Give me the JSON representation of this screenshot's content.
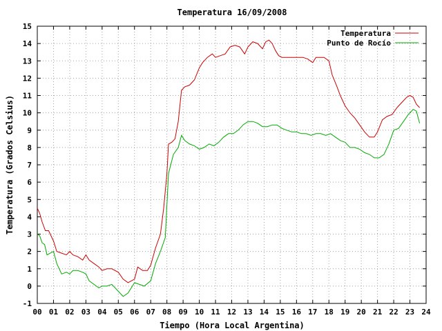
{
  "chart_data": {
    "type": "line",
    "title": "Temperatura 16/09/2008",
    "xlabel": "Tiempo (Hora Local Argentina)",
    "ylabel": "Temperatura (Grados Celsius)",
    "xlim": [
      0,
      24
    ],
    "ylim": [
      -1,
      15
    ],
    "x_ticks": [
      "00",
      "01",
      "02",
      "03",
      "04",
      "05",
      "06",
      "07",
      "08",
      "09",
      "10",
      "11",
      "12",
      "13",
      "14",
      "15",
      "16",
      "17",
      "18",
      "19",
      "20",
      "21",
      "22",
      "23",
      "24"
    ],
    "y_ticks": [
      -1,
      0,
      1,
      2,
      3,
      4,
      5,
      6,
      7,
      8,
      9,
      10,
      11,
      12,
      13,
      14,
      15
    ],
    "grid": true,
    "legend_position": "top-right",
    "series": [
      {
        "name": "Temperatura",
        "color": "#cc0000",
        "x": [
          0,
          0.15,
          0.3,
          0.5,
          0.7,
          1.0,
          1.2,
          1.5,
          1.8,
          2.0,
          2.2,
          2.5,
          2.8,
          3.0,
          3.2,
          3.5,
          3.8,
          4.0,
          4.3,
          4.6,
          5.0,
          5.3,
          5.6,
          6.0,
          6.2,
          6.5,
          6.8,
          7.0,
          7.3,
          7.6,
          7.8,
          8.0,
          8.1,
          8.3,
          8.5,
          8.7,
          8.9,
          9.1,
          9.4,
          9.7,
          10.0,
          10.2,
          10.5,
          10.8,
          11.0,
          11.3,
          11.6,
          11.9,
          12.2,
          12.5,
          12.8,
          13.0,
          13.3,
          13.6,
          13.9,
          14.1,
          14.3,
          14.5,
          14.7,
          14.9,
          15.1,
          15.3,
          15.5,
          15.8,
          16.1,
          16.4,
          16.7,
          17.0,
          17.2,
          17.4,
          17.7,
          18.0,
          18.2,
          18.5,
          18.7,
          19.0,
          19.3,
          19.6,
          19.9,
          20.2,
          20.5,
          20.8,
          21.0,
          21.3,
          21.6,
          21.9,
          22.2,
          22.5,
          22.8,
          23.0,
          23.2,
          23.4,
          23.6
        ],
        "values": [
          4.5,
          4.2,
          3.7,
          3.2,
          3.2,
          2.6,
          2.0,
          1.9,
          1.8,
          2.0,
          1.8,
          1.7,
          1.5,
          1.8,
          1.5,
          1.3,
          1.1,
          0.9,
          1.0,
          1.0,
          0.8,
          0.4,
          0.2,
          0.4,
          1.1,
          0.9,
          0.9,
          1.2,
          2.2,
          3.0,
          4.5,
          6.5,
          8.2,
          8.3,
          8.5,
          9.5,
          11.3,
          11.5,
          11.6,
          11.9,
          12.6,
          12.9,
          13.2,
          13.4,
          13.2,
          13.3,
          13.4,
          13.8,
          13.9,
          13.8,
          13.4,
          13.8,
          14.1,
          14.0,
          13.7,
          14.1,
          14.2,
          14.0,
          13.6,
          13.3,
          13.2,
          13.2,
          13.2,
          13.2,
          13.2,
          13.2,
          13.1,
          12.9,
          13.2,
          13.2,
          13.2,
          13.0,
          12.2,
          11.5,
          11.0,
          10.4,
          10.0,
          9.7,
          9.3,
          8.9,
          8.6,
          8.6,
          8.9,
          9.6,
          9.8,
          9.9,
          10.3,
          10.6,
          10.9,
          11.0,
          10.9,
          10.5,
          10.3
        ]
      },
      {
        "name": "Punto de Rocío",
        "color": "#00aa00",
        "x": [
          0,
          0.15,
          0.3,
          0.45,
          0.6,
          0.8,
          1.0,
          1.2,
          1.5,
          1.8,
          2.0,
          2.2,
          2.5,
          2.8,
          3.0,
          3.2,
          3.5,
          3.8,
          4.0,
          4.3,
          4.6,
          5.0,
          5.3,
          5.6,
          6.0,
          6.3,
          6.6,
          7.0,
          7.3,
          7.6,
          7.9,
          8.1,
          8.4,
          8.7,
          8.9,
          9.1,
          9.4,
          9.7,
          10.0,
          10.3,
          10.6,
          10.9,
          11.2,
          11.5,
          11.8,
          12.1,
          12.4,
          12.7,
          13.0,
          13.3,
          13.6,
          13.9,
          14.2,
          14.5,
          14.8,
          15.1,
          15.4,
          15.7,
          16.0,
          16.3,
          16.6,
          16.9,
          17.2,
          17.5,
          17.8,
          18.1,
          18.4,
          18.7,
          19.0,
          19.3,
          19.6,
          19.9,
          20.2,
          20.5,
          20.8,
          21.1,
          21.4,
          21.7,
          22.0,
          22.3,
          22.6,
          22.9,
          23.2,
          23.4,
          23.6
        ],
        "values": [
          3.0,
          2.9,
          2.5,
          2.4,
          1.8,
          1.9,
          2.0,
          1.3,
          0.7,
          0.8,
          0.7,
          0.9,
          0.9,
          0.8,
          0.7,
          0.3,
          0.1,
          -0.1,
          0.0,
          0.0,
          0.1,
          -0.3,
          -0.6,
          -0.4,
          0.2,
          0.1,
          0.0,
          0.3,
          1.3,
          2.0,
          2.8,
          6.5,
          7.6,
          8.0,
          8.7,
          8.4,
          8.2,
          8.1,
          7.9,
          8.0,
          8.2,
          8.1,
          8.3,
          8.6,
          8.8,
          8.8,
          9.0,
          9.3,
          9.5,
          9.5,
          9.4,
          9.2,
          9.2,
          9.3,
          9.3,
          9.1,
          9.0,
          8.9,
          8.9,
          8.8,
          8.8,
          8.7,
          8.8,
          8.8,
          8.7,
          8.8,
          8.6,
          8.4,
          8.3,
          8.0,
          8.0,
          7.9,
          7.7,
          7.6,
          7.4,
          7.4,
          7.6,
          8.2,
          9.0,
          9.1,
          9.5,
          9.9,
          10.2,
          10.1,
          9.4
        ]
      }
    ]
  }
}
